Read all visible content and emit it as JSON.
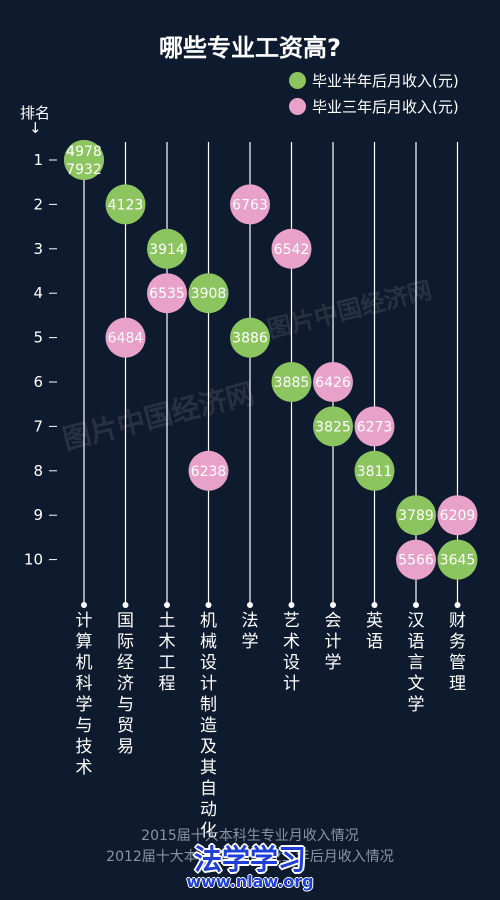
{
  "header": {
    "title": "哪些专业工资高?"
  },
  "legend": {
    "half_year": {
      "label": "毕业半年后月收入(元)",
      "color": "#8cc45f"
    },
    "three_year": {
      "label": "毕业三年后月收入(元)",
      "color": "#e8a1c8"
    }
  },
  "rank_axis": {
    "title": "排名",
    "arrow": "↓"
  },
  "chart_data": {
    "type": "scatter",
    "title": "哪些专业工资高?",
    "categories": [
      "计算机科学与技术",
      "国际经济与贸易",
      "土木工程",
      "机械设计制造及其自动化",
      "法学",
      "艺术设计",
      "会计学",
      "英语",
      "汉语言文学",
      "财务管理"
    ],
    "y_ticks": [
      "1",
      "2",
      "3",
      "4",
      "5",
      "6",
      "7",
      "8",
      "9",
      "10"
    ],
    "ylabel": "排名",
    "ylim": [
      1,
      10
    ],
    "y_inverted": true,
    "legend_position": "top-right",
    "series": [
      {
        "name": "毕业半年后月收入(元)",
        "color": "#8cc45f",
        "points": [
          {
            "major": "计算机科学与技术",
            "rank": 1,
            "value": "4978"
          },
          {
            "major": "国际经济与贸易",
            "rank": 2,
            "value": "4123"
          },
          {
            "major": "土木工程",
            "rank": 3,
            "value": "3914"
          },
          {
            "major": "机械设计制造及其自动化",
            "rank": 4,
            "value": "3908"
          },
          {
            "major": "法学",
            "rank": 5,
            "value": "3886"
          },
          {
            "major": "艺术设计",
            "rank": 6,
            "value": "3885"
          },
          {
            "major": "会计学",
            "rank": 7,
            "value": "3825"
          },
          {
            "major": "英语",
            "rank": 8,
            "value": "3811"
          },
          {
            "major": "汉语言文学",
            "rank": 9,
            "value": "3789"
          },
          {
            "major": "财务管理",
            "rank": 10,
            "value": "3645"
          }
        ]
      },
      {
        "name": "毕业三年后月收入(元)",
        "color": "#e8a1c8",
        "points": [
          {
            "major": "计算机科学与技术",
            "rank": 1,
            "value": "7932"
          },
          {
            "major": "法学",
            "rank": 2,
            "value": "6763"
          },
          {
            "major": "艺术设计",
            "rank": 3,
            "value": "6542"
          },
          {
            "major": "土木工程",
            "rank": 4,
            "value": "6535"
          },
          {
            "major": "国际经济与贸易",
            "rank": 5,
            "value": "6484"
          },
          {
            "major": "会计学",
            "rank": 6,
            "value": "6426"
          },
          {
            "major": "英语",
            "rank": 7,
            "value": "6273"
          },
          {
            "major": "机械设计制造及其自动化",
            "rank": 8,
            "value": "6238"
          },
          {
            "major": "财务管理",
            "rank": 9,
            "value": "6209"
          },
          {
            "major": "汉语言文学",
            "rank": 10,
            "value": "5566"
          }
        ]
      }
    ]
  },
  "footer": {
    "line1": "2015届十大本科生专业月收入情况",
    "line2": "2012届十大本科生专业毕业三年后月收入情况"
  },
  "watermarks": {
    "main": "图片中国经济网",
    "site_name": "法学学习",
    "site_url": "www.nlaw.org",
    "site_color": "#1f3fd6"
  }
}
